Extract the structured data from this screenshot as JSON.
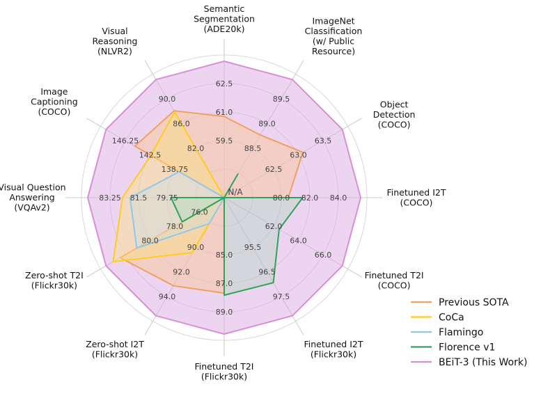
{
  "chart_data": {
    "type": "radar",
    "center_label": "N/A",
    "axes": [
      {
        "label": [
          "Semantic",
          "Segmentation",
          "(ADE20k)"
        ],
        "ticks": [
          "59.5",
          "61.0",
          "62.5"
        ]
      },
      {
        "label": [
          "ImageNet",
          "Classification",
          "(w/ Public",
          "Resource)"
        ],
        "ticks": [
          "88.5",
          "89.0",
          "89.5"
        ]
      },
      {
        "label": [
          "Object",
          "Detection",
          "(COCO)"
        ],
        "ticks": [
          "62.5",
          "63.0",
          "63.5"
        ]
      },
      {
        "label": [
          "Finetuned I2T",
          "(COCO)"
        ],
        "ticks": [
          "80.0",
          "82.0",
          "84.0"
        ]
      },
      {
        "label": [
          "Finetuned T2I",
          "(COCO)"
        ],
        "ticks": [
          "62.0",
          "64.0",
          "66.0"
        ]
      },
      {
        "label": [
          "Finetuned I2T",
          "(Flickr30k)"
        ],
        "ticks": [
          "95.5",
          "96.5",
          "97.5"
        ]
      },
      {
        "label": [
          "Finetuned T2I",
          "(Flickr30k)"
        ],
        "ticks": [
          "85.0",
          "87.0",
          "89.0"
        ]
      },
      {
        "label": [
          "Zero-shot I2T",
          "(Flickr30k)"
        ],
        "ticks": [
          "90.0",
          "92.0",
          "94.0"
        ]
      },
      {
        "label": [
          "Zero-shot T2I",
          "(Flickr30k)"
        ],
        "ticks": [
          "78.0",
          "80.0"
        ]
      },
      {
        "label": [
          "Visual Question",
          "Answering",
          "(VQAv2)"
        ],
        "ticks": [
          "79.75",
          "81.5",
          "83.25"
        ]
      },
      {
        "label": [
          "Image",
          "Captioning",
          "(COCO)"
        ],
        "ticks": [
          "138.75",
          "142.5",
          "146.25"
        ]
      },
      {
        "label": [
          "Visual",
          "Reasoning",
          "(NLVR2)"
        ],
        "ticks": [
          "82.0",
          "86.0",
          "90.0"
        ]
      }
    ],
    "extra_ticks": [
      {
        "axis": 8,
        "text": "76.0"
      }
    ],
    "series": [
      {
        "name": "Previous SOTA",
        "color": "#f0a060",
        "fill": "#f6c8a3",
        "fill_opacity": 0.55,
        "values": [
          0.595,
          0.53,
          0.665,
          0.47,
          0.0,
          0.0,
          0.7,
          0.745,
          0.88,
          0.0,
          0.755,
          0.735
        ]
      },
      {
        "name": "CoCa",
        "color": "#ffcc1f",
        "fill": "#ffe27a",
        "fill_opacity": 0.42,
        "values": [
          0.0,
          0.0,
          0.0,
          0.0,
          0.0,
          0.0,
          0.0,
          0.465,
          0.94,
          0.745,
          0.62,
          0.725
        ]
      },
      {
        "name": "Flamingo",
        "color": "#8ec8ec",
        "fill": "#bde0f4",
        "fill_opacity": 0.3,
        "values": [
          0.0,
          0.0,
          0.0,
          0.0,
          0.0,
          0.0,
          0.0,
          0.22,
          0.74,
          0.69,
          0.38,
          0.0
        ]
      },
      {
        "name": "Florence v1",
        "color": "#2ea35a",
        "fill": "#9fdcae",
        "fill_opacity": 0.3,
        "values": [
          0.0,
          0.2,
          0.0,
          0.575,
          0.465,
          0.72,
          0.715,
          0.0,
          0.355,
          0.39,
          0.0,
          0.0
        ]
      },
      {
        "name": "BEiT-3 (This Work)",
        "color": "#d68fd8",
        "fill": "#dbaae1",
        "fill_opacity": 0.5,
        "values": [
          1.0,
          1.0,
          1.0,
          1.0,
          1.0,
          1.0,
          1.0,
          1.0,
          1.0,
          1.0,
          1.0,
          1.0
        ]
      }
    ],
    "legend_position": "bottom-right",
    "grid": true
  }
}
